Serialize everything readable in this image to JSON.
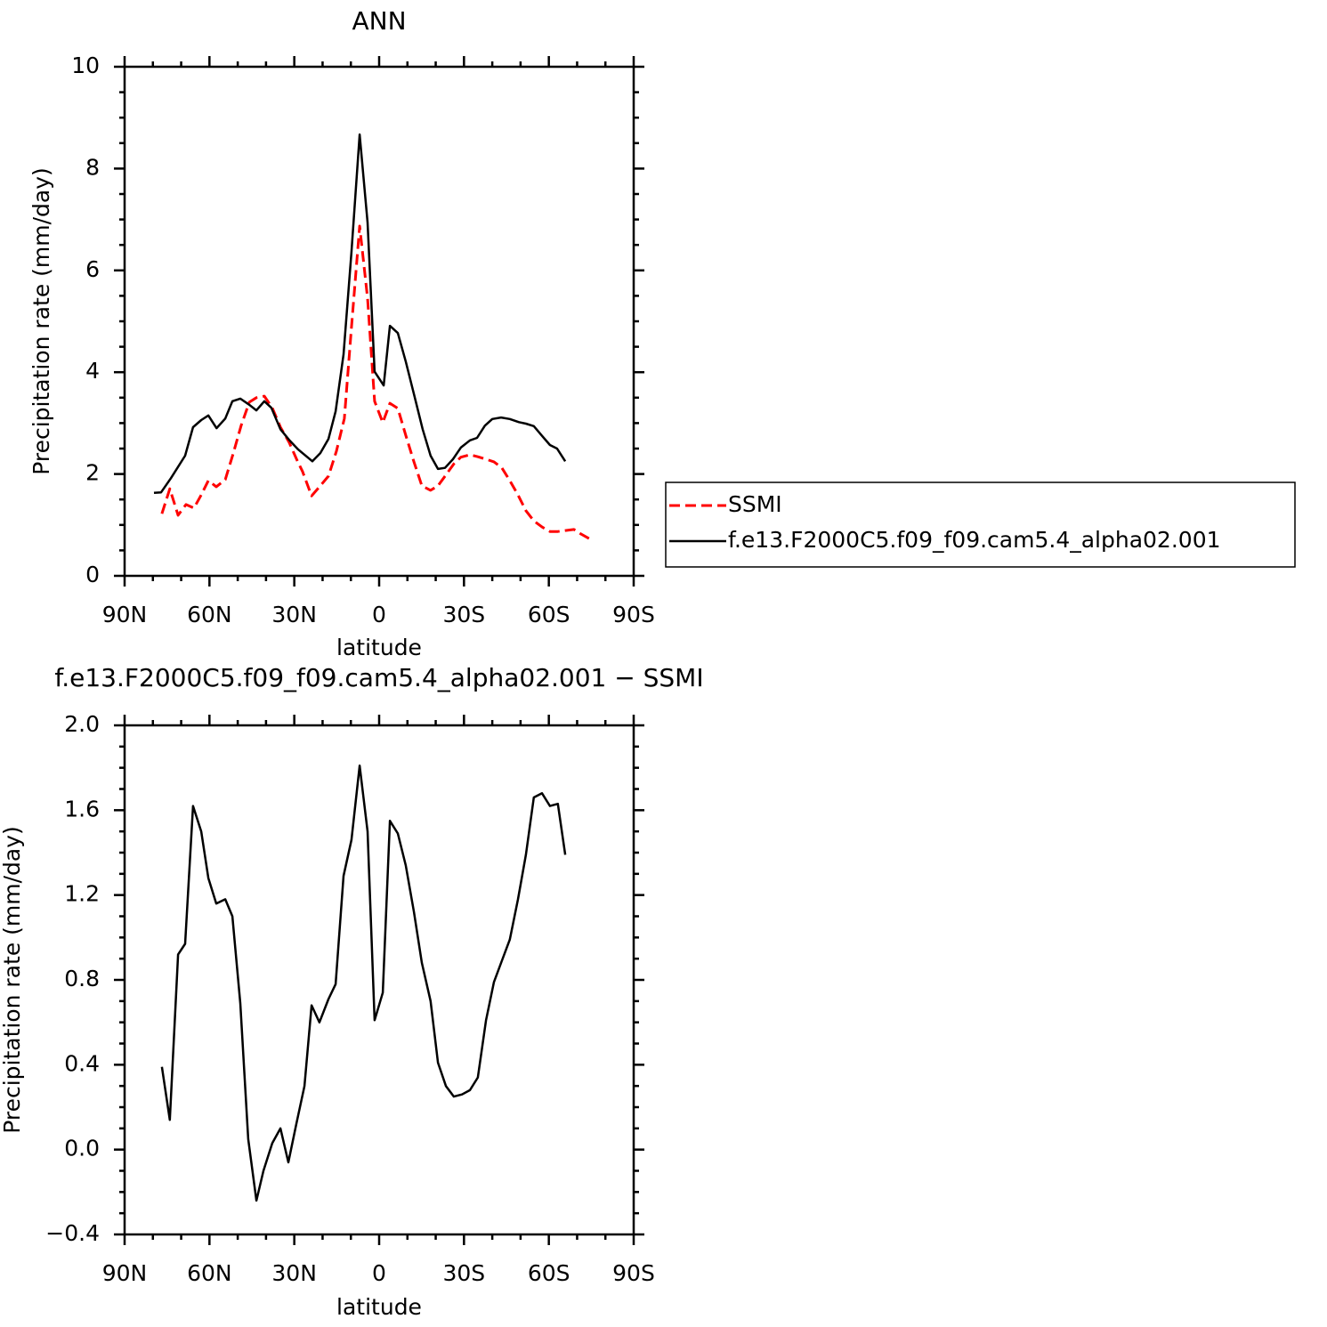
{
  "chart_data": [
    {
      "type": "line",
      "title": "ANN",
      "xlabel": "latitude",
      "ylabel": "Precipitation rate (mm/day)",
      "xlim": [
        90,
        -90
      ],
      "xticks": [
        {
          "value": 90,
          "label": "90N"
        },
        {
          "value": 60,
          "label": "60N"
        },
        {
          "value": 30,
          "label": "30N"
        },
        0,
        {
          "value": -30,
          "label": "30S"
        },
        {
          "value": -60,
          "label": "60S"
        },
        {
          "value": -90,
          "label": "90S"
        }
      ],
      "xminorticks": [
        80,
        70,
        50,
        40,
        20,
        10,
        -10,
        -20,
        -40,
        -50,
        -70,
        -80
      ],
      "ylim": [
        0,
        10
      ],
      "yticks": [
        0,
        2,
        4,
        6,
        8,
        10
      ],
      "yminorticks": [
        0.5,
        1,
        1.5,
        2.5,
        3,
        3.5,
        4.5,
        5,
        5.5,
        6.5,
        7,
        7.5,
        8.5,
        9,
        9.5
      ],
      "legend": "right",
      "series": [
        {
          "name": "SSMI",
          "color": "#ff0000",
          "dash": "dashed",
          "x": [
            76.8,
            74.0,
            71.1,
            68.3,
            65.5,
            62.9,
            60.4,
            57.6,
            54.4,
            51.6,
            48.8,
            45.9,
            43.4,
            40.6,
            37.8,
            34.9,
            31.8,
            29.0,
            27.1,
            23.9,
            20.8,
            17.9,
            15.1,
            12.3,
            9.8,
            6.9,
            4.1,
            1.6,
            -1.3,
            -3.8,
            -6.6,
            -9.4,
            -12.3,
            -15.1,
            -18.2,
            -20.8,
            -23.6,
            -26.4,
            -28.9,
            -32.1,
            -34.9,
            -37.8,
            -40.6,
            -43.4,
            -46.2,
            -49.1,
            -51.9,
            -54.7,
            -57.6,
            -60.4,
            -63.2,
            -65.8,
            -68.9,
            -71.4,
            -74.3
          ],
          "values": [
            1.22,
            1.71,
            1.19,
            1.4,
            1.33,
            1.59,
            1.87,
            1.75,
            1.89,
            2.4,
            2.95,
            3.41,
            3.5,
            3.53,
            3.3,
            2.92,
            2.62,
            2.27,
            2.05,
            1.57,
            1.77,
            1.96,
            2.45,
            3.09,
            4.88,
            6.87,
            5.45,
            3.43,
            3.01,
            3.39,
            3.29,
            2.76,
            2.24,
            1.77,
            1.68,
            1.77,
            1.98,
            2.2,
            2.33,
            2.38,
            2.34,
            2.29,
            2.24,
            2.12,
            1.87,
            1.59,
            1.28,
            1.08,
            0.96,
            0.87,
            0.87,
            0.89,
            0.91,
            0.82,
            0.73
          ]
        },
        {
          "name": "f.e13.F2000C5.f09_f09.cam5.4_alpha02.001",
          "color": "#000000",
          "dash": "solid",
          "x": [
            79.6,
            77.1,
            73.6,
            68.6,
            65.8,
            62.9,
            60.4,
            57.5,
            54.4,
            51.9,
            49.1,
            45.9,
            43.4,
            40.6,
            38.1,
            34.9,
            31.8,
            28.6,
            23.6,
            20.8,
            17.9,
            15.4,
            12.6,
            9.8,
            6.9,
            4.1,
            1.6,
            -1.6,
            -3.8,
            -6.6,
            -9.4,
            -12.3,
            -15.4,
            -18.2,
            -20.8,
            -23.3,
            -26.1,
            -28.9,
            -32.1,
            -34.6,
            -37.4,
            -40.0,
            -43.1,
            -46.2,
            -49.4,
            -51.9,
            -54.7,
            -57.6,
            -60.4,
            -62.9,
            -65.8
          ],
          "values": [
            1.63,
            1.64,
            1.92,
            2.36,
            2.92,
            3.06,
            3.15,
            2.9,
            3.09,
            3.43,
            3.48,
            3.36,
            3.25,
            3.43,
            3.3,
            2.88,
            2.67,
            2.48,
            2.25,
            2.41,
            2.69,
            3.23,
            4.35,
            6.36,
            8.67,
            6.94,
            4.01,
            3.74,
            4.91,
            4.77,
            4.21,
            3.57,
            2.88,
            2.36,
            2.1,
            2.12,
            2.29,
            2.52,
            2.66,
            2.71,
            2.95,
            3.08,
            3.11,
            3.08,
            3.02,
            2.99,
            2.94,
            2.75,
            2.57,
            2.5,
            2.25
          ]
        }
      ]
    },
    {
      "type": "line",
      "title": "f.e13.F2000C5.f09_f09.cam5.4_alpha02.001 − SSMI",
      "xlabel": "latitude",
      "ylabel": "Precipitation rate (mm/day)",
      "xlim": [
        90,
        -90
      ],
      "xticks": [
        {
          "value": 90,
          "label": "90N"
        },
        {
          "value": 60,
          "label": "60N"
        },
        {
          "value": 30,
          "label": "30N"
        },
        0,
        {
          "value": -30,
          "label": "30S"
        },
        {
          "value": -60,
          "label": "60S"
        },
        {
          "value": -90,
          "label": "90S"
        }
      ],
      "xminorticks": [
        80,
        70,
        50,
        40,
        20,
        10,
        -10,
        -20,
        -40,
        -50,
        -70,
        -80
      ],
      "ylim": [
        -0.4,
        2.0
      ],
      "yticks": [
        {
          "value": -0.4,
          "label": "−0.4"
        },
        {
          "value": 0,
          "label": "0.0"
        },
        0.4,
        0.8,
        1.2,
        1.6,
        {
          "value": 2.0,
          "label": "2.0"
        }
      ],
      "yminorticks": [
        -0.3,
        -0.2,
        -0.1,
        0.1,
        0.2,
        0.3,
        0.5,
        0.6,
        0.7,
        0.9,
        1.0,
        1.1,
        1.3,
        1.4,
        1.5,
        1.7,
        1.8,
        1.9
      ],
      "series": [
        {
          "color": "#000000",
          "dash": "solid",
          "x": [
            76.8,
            74.0,
            71.1,
            68.6,
            65.8,
            62.9,
            60.4,
            57.6,
            54.4,
            51.9,
            49.1,
            46.3,
            43.4,
            40.9,
            37.8,
            34.9,
            32.1,
            29.3,
            26.4,
            23.9,
            21.1,
            17.9,
            15.4,
            12.6,
            9.8,
            6.9,
            4.1,
            1.6,
            -1.3,
            -3.8,
            -6.6,
            -9.4,
            -12.3,
            -15.1,
            -18.2,
            -20.8,
            -23.6,
            -26.4,
            -29.3,
            -32.1,
            -34.9,
            -37.8,
            -40.6,
            -43.4,
            -46.2,
            -49.1,
            -51.9,
            -54.7,
            -57.6,
            -60.4,
            -63.2,
            -65.8
          ],
          "values": [
            0.39,
            0.14,
            0.92,
            0.97,
            1.62,
            1.5,
            1.28,
            1.16,
            1.18,
            1.1,
            0.69,
            0.05,
            -0.24,
            -0.1,
            0.03,
            0.1,
            -0.06,
            0.12,
            0.3,
            0.68,
            0.6,
            0.71,
            0.78,
            1.29,
            1.46,
            1.81,
            1.5,
            0.61,
            0.74,
            1.55,
            1.49,
            1.34,
            1.12,
            0.88,
            0.7,
            0.41,
            0.3,
            0.25,
            0.26,
            0.28,
            0.34,
            0.61,
            0.79,
            0.89,
            0.99,
            1.18,
            1.39,
            1.66,
            1.68,
            1.62,
            1.63,
            1.39
          ]
        }
      ]
    }
  ]
}
